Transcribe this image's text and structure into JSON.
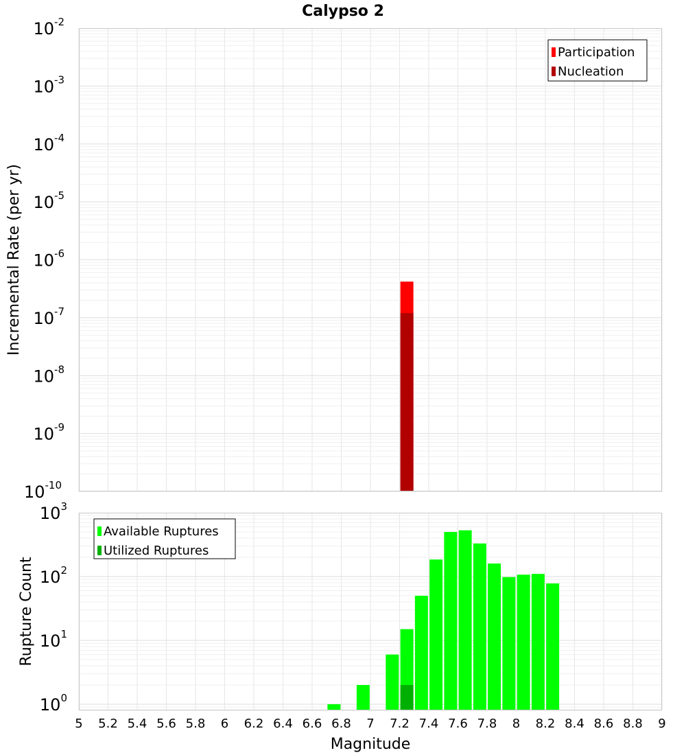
{
  "title": "Calypso 2",
  "colors": {
    "participation": "#ff0000",
    "nucleation": "#b00000",
    "available": "#00ff00",
    "utilized": "#00b000",
    "grid": "#e6e6e6",
    "frame": "#c8c8c8"
  },
  "x_axis": {
    "label": "Magnitude",
    "range": [
      5,
      9
    ],
    "ticks": [
      "5",
      "5.2",
      "5.4",
      "5.6",
      "5.8",
      "6",
      "6.2",
      "6.4",
      "6.6",
      "6.8",
      "7",
      "7.2",
      "7.4",
      "7.6",
      "7.8",
      "8",
      "8.2",
      "8.4",
      "8.6",
      "8.8",
      "9"
    ]
  },
  "chart_data": [
    {
      "type": "bar",
      "title": "Calypso 2",
      "xlabel": "Magnitude",
      "ylabel": "Incremental Rate (per yr)",
      "yscale": "log",
      "xlim": [
        5,
        9
      ],
      "ylim": [
        1e-10,
        0.01
      ],
      "y_ticks": [
        {
          "base": "10",
          "exp": "-2"
        },
        {
          "base": "10",
          "exp": "-3"
        },
        {
          "base": "10",
          "exp": "-4"
        },
        {
          "base": "10",
          "exp": "-5"
        },
        {
          "base": "10",
          "exp": "-6"
        },
        {
          "base": "10",
          "exp": "-7"
        },
        {
          "base": "10",
          "exp": "-8"
        },
        {
          "base": "10",
          "exp": "-9"
        },
        {
          "base": "10",
          "exp": "-10"
        }
      ],
      "grid": true,
      "legend_position": "top-right",
      "series": [
        {
          "name": "Participation",
          "color": "#ff0000",
          "x": [
            7.25
          ],
          "values": [
            4.2e-07
          ]
        },
        {
          "name": "Nucleation",
          "color": "#b00000",
          "x": [
            7.25
          ],
          "values": [
            1.2e-07
          ]
        }
      ]
    },
    {
      "type": "bar",
      "xlabel": "Magnitude",
      "ylabel": "Rupture Count",
      "yscale": "log",
      "xlim": [
        5,
        9
      ],
      "ylim": [
        0.8,
        1000
      ],
      "y_ticks": [
        {
          "base": "10",
          "exp": "3"
        },
        {
          "base": "10",
          "exp": "2"
        },
        {
          "base": "10",
          "exp": "1"
        },
        {
          "base": "10",
          "exp": "0"
        }
      ],
      "grid": true,
      "legend_position": "top-left",
      "series": [
        {
          "name": "Available Ruptures",
          "color": "#00ff00",
          "x": [
            6.75,
            6.95,
            7.15,
            7.25,
            7.35,
            7.45,
            7.55,
            7.65,
            7.75,
            7.85,
            7.95,
            8.05,
            8.15,
            8.25
          ],
          "values": [
            1,
            2,
            6,
            15,
            50,
            185,
            500,
            530,
            330,
            160,
            98,
            107,
            110,
            78
          ]
        },
        {
          "name": "Utilized Ruptures",
          "color": "#00b000",
          "x": [
            7.25
          ],
          "values": [
            2
          ]
        }
      ]
    }
  ]
}
